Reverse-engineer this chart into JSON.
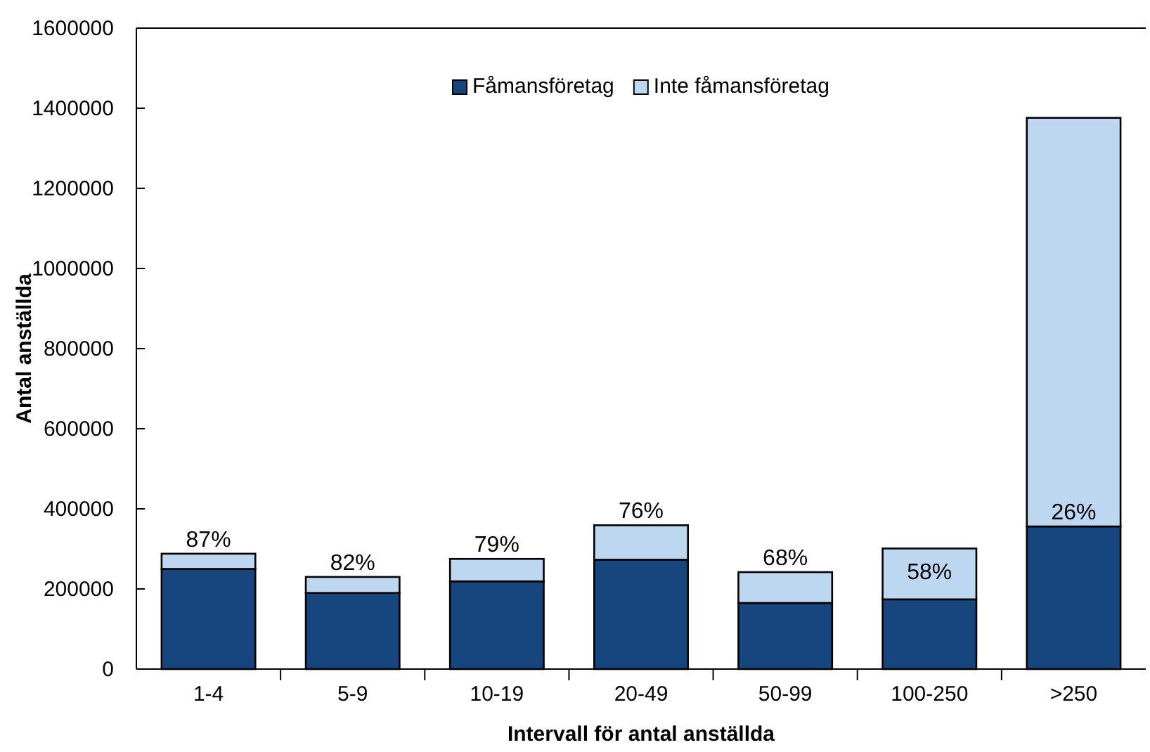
{
  "chart_data": {
    "type": "bar",
    "stacked": true,
    "xlabel": "Intervall för antal anställda",
    "ylabel": "Antal anställda",
    "categories": [
      "1-4",
      "5-9",
      "10-19",
      "20-49",
      "50-99",
      "100-250",
      ">250"
    ],
    "series": [
      {
        "name": "Fåmansföretag",
        "color": "#17467e",
        "values": [
          250000,
          190000,
          219000,
          273000,
          165000,
          174000,
          356000
        ]
      },
      {
        "name": "Inte fåmansföretag",
        "color": "#bdd7f0",
        "values": [
          38000,
          40000,
          56000,
          86000,
          77000,
          127000,
          1020000
        ]
      }
    ],
    "ylim": [
      0,
      1600000
    ],
    "yticks": [
      0,
      200000,
      400000,
      600000,
      800000,
      1000000,
      1200000,
      1400000,
      1600000
    ],
    "legend": "top",
    "grid": false,
    "annotations": [
      {
        "text": "87%",
        "x": "1-4",
        "y": 288000
      },
      {
        "text": "82%",
        "x": "5-9",
        "y": 230000
      },
      {
        "text": "79%",
        "x": "10-19",
        "y": 275000
      },
      {
        "text": "76%",
        "x": "20-49",
        "y": 359000
      },
      {
        "text": "68%",
        "x": "50-99",
        "y": 242000
      },
      {
        "text": "58%",
        "x": "100-250",
        "y": 301000
      },
      {
        "text": "26%",
        "x": ">250",
        "y": 356000
      }
    ]
  }
}
